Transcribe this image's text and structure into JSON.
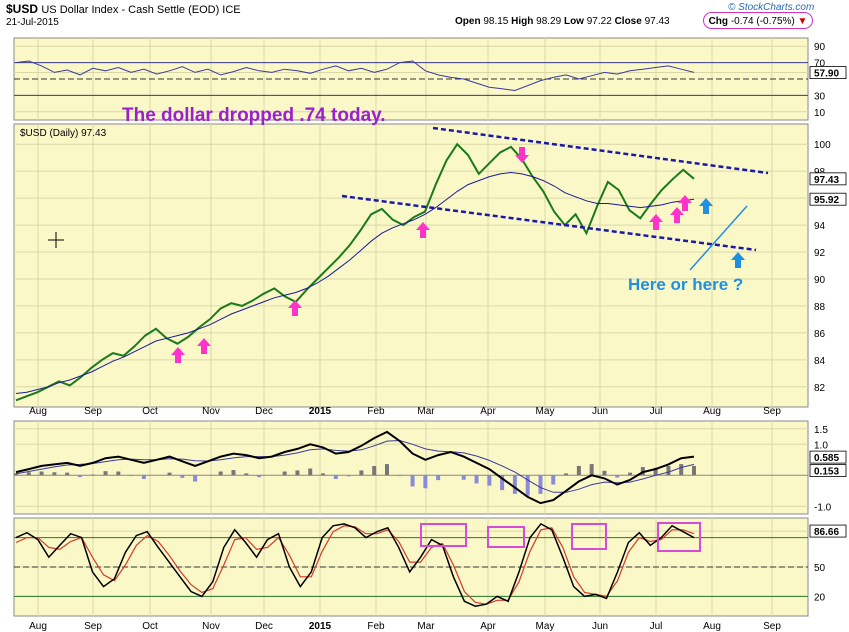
{
  "header": {
    "symbol": "$USD",
    "description": "US Dollar Index - Cash Settle (EOD) ICE",
    "date": "21-Jul-2015",
    "open_label": "Open",
    "open": "98.15",
    "high_label": "High",
    "high": "98.29",
    "low_label": "Low",
    "low": "97.22",
    "close_label": "Close",
    "close": "97.43",
    "chg_label": "Chg",
    "chg": "-0.74 (-0.75%)",
    "chg_arrow": "▼",
    "logo": "© StockCharts.com"
  },
  "annotations": {
    "headline": "The dollar dropped .74 today.",
    "question": "Here or here ?",
    "headline_color": "#9b1fd1",
    "question_color": "#1f8fe0",
    "arrow_color": "#ff33cc",
    "arrow_blue": "#1f8fe0"
  },
  "chart_data": [
    {
      "type": "line",
      "name": "RSI panel",
      "y_ticks": [
        "90",
        "70",
        "57.90",
        "30",
        "10"
      ],
      "current": 57.9,
      "ylim": [
        0,
        100
      ],
      "series": [
        {
          "values": [
            70,
            72,
            66,
            58,
            61,
            55,
            63,
            60,
            64,
            58,
            62,
            56,
            60,
            65,
            58,
            62,
            55,
            59,
            64,
            60,
            58,
            62,
            60,
            57,
            62,
            66,
            60,
            63,
            58,
            62,
            70,
            72,
            60,
            55,
            52,
            50,
            45,
            40,
            38,
            36,
            42,
            48,
            52,
            55,
            50,
            54,
            58,
            56,
            60,
            62,
            64,
            66,
            62,
            58
          ]
        }
      ]
    },
    {
      "type": "line",
      "name": "Price panel",
      "series_label": "$USD (Daily) 97.43",
      "y_ticks": [
        "100",
        "98",
        "96",
        "94",
        "92",
        "90",
        "88",
        "86",
        "84",
        "82"
      ],
      "ylim": [
        80.5,
        101.5
      ],
      "last_price_label": "97.43",
      "ma_label": "95.92",
      "x_ticks": [
        "Aug",
        "Sep",
        "Oct",
        "Nov",
        "Dec",
        "2015",
        "Feb",
        "Mar",
        "Apr",
        "May",
        "Jun",
        "Jul",
        "Aug",
        "Sep"
      ],
      "series": [
        {
          "values": [
            81.0,
            81.3,
            81.6,
            82.0,
            82.4,
            82.1,
            82.7,
            83.4,
            84.0,
            84.5,
            84.3,
            85.0,
            85.8,
            86.3,
            85.6,
            85.2,
            85.7,
            86.4,
            87.0,
            87.8,
            88.2,
            88.0,
            88.4,
            88.9,
            89.3,
            88.7,
            88.3,
            89.2,
            90.0,
            90.8,
            91.6,
            92.5,
            93.6,
            94.8,
            95.2,
            94.4,
            94.0,
            94.6,
            95.0,
            97.0,
            98.8,
            100.0,
            99.2,
            97.8,
            98.6,
            99.4,
            99.8,
            98.9,
            97.6,
            96.5,
            95.0,
            94.0,
            94.8,
            93.4,
            95.4,
            97.2,
            96.6,
            95.1,
            94.5,
            95.6,
            96.6,
            97.4,
            98.1,
            97.43
          ]
        },
        {
          "values": [
            81.5,
            81.6,
            81.8,
            82.0,
            82.3,
            82.5,
            82.8,
            83.1,
            83.5,
            83.9,
            84.2,
            84.6,
            85.0,
            85.4,
            85.6,
            85.8,
            86.0,
            86.3,
            86.6,
            87.0,
            87.4,
            87.7,
            88.0,
            88.3,
            88.6,
            88.8,
            89.0,
            89.3,
            89.7,
            90.2,
            90.8,
            91.4,
            92.1,
            92.8,
            93.4,
            93.8,
            94.1,
            94.4,
            94.8,
            95.3,
            95.9,
            96.5,
            97.0,
            97.3,
            97.6,
            97.8,
            97.9,
            97.8,
            97.6,
            97.3,
            96.9,
            96.4,
            96.1,
            95.8,
            95.6,
            95.6,
            95.5,
            95.4,
            95.3,
            95.4,
            95.5,
            95.7,
            95.8,
            95.92
          ]
        }
      ]
    },
    {
      "type": "line",
      "name": "MACD panel",
      "y_ticks": [
        "1.5",
        "1.0",
        "0.585",
        "0.153",
        "-1.0"
      ],
      "ylim": [
        -1.25,
        1.75
      ],
      "series": [
        {
          "values": [
            0.1,
            0.2,
            0.3,
            0.35,
            0.4,
            0.3,
            0.4,
            0.55,
            0.6,
            0.5,
            0.4,
            0.5,
            0.6,
            0.45,
            0.3,
            0.45,
            0.6,
            0.7,
            0.65,
            0.55,
            0.6,
            0.75,
            0.85,
            1.0,
            0.9,
            0.7,
            0.75,
            0.95,
            1.2,
            1.4,
            1.1,
            0.7,
            0.5,
            0.65,
            0.75,
            0.6,
            0.4,
            0.2,
            -0.1,
            -0.4,
            -0.7,
            -0.9,
            -0.8,
            -0.5,
            -0.2,
            0.0,
            -0.1,
            -0.3,
            -0.15,
            0.1,
            0.2,
            0.35,
            0.55,
            0.6
          ]
        },
        {
          "values": [
            0.05,
            0.12,
            0.2,
            0.27,
            0.33,
            0.35,
            0.38,
            0.44,
            0.5,
            0.52,
            0.5,
            0.5,
            0.53,
            0.52,
            0.47,
            0.46,
            0.5,
            0.56,
            0.6,
            0.6,
            0.6,
            0.65,
            0.72,
            0.82,
            0.85,
            0.8,
            0.78,
            0.82,
            0.95,
            1.1,
            1.12,
            1.0,
            0.85,
            0.78,
            0.76,
            0.72,
            0.62,
            0.48,
            0.3,
            0.1,
            -0.15,
            -0.4,
            -0.55,
            -0.55,
            -0.45,
            -0.3,
            -0.22,
            -0.24,
            -0.22,
            -0.12,
            0.0,
            0.1,
            0.25,
            0.35
          ]
        }
      ]
    },
    {
      "type": "line",
      "name": "Stochastic panel",
      "y_ticks": [
        "86.66",
        "50",
        "20"
      ],
      "ylim": [
        0,
        100
      ],
      "series": [
        {
          "values": [
            80,
            85,
            78,
            60,
            72,
            84,
            80,
            45,
            30,
            38,
            65,
            82,
            86,
            70,
            55,
            40,
            25,
            20,
            35,
            70,
            88,
            75,
            60,
            78,
            84,
            50,
            30,
            45,
            80,
            92,
            94,
            90,
            80,
            86,
            90,
            70,
            45,
            60,
            78,
            72,
            40,
            15,
            10,
            12,
            20,
            15,
            45,
            80,
            94,
            88,
            60,
            30,
            20,
            22,
            18,
            45,
            75,
            85,
            72,
            80,
            92,
            86,
            80
          ]
        },
        {
          "values": [
            75,
            80,
            80,
            70,
            68,
            76,
            80,
            60,
            42,
            36,
            52,
            72,
            82,
            76,
            62,
            46,
            32,
            24,
            28,
            52,
            78,
            80,
            68,
            70,
            80,
            62,
            40,
            40,
            66,
            86,
            92,
            91,
            84,
            84,
            88,
            76,
            55,
            55,
            70,
            74,
            52,
            25,
            14,
            12,
            16,
            16,
            35,
            66,
            88,
            90,
            70,
            40,
            24,
            22,
            20,
            36,
            65,
            80,
            76,
            78,
            88,
            88,
            84
          ]
        }
      ]
    }
  ]
}
